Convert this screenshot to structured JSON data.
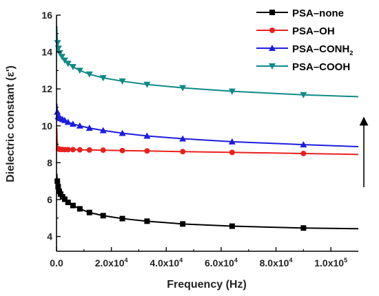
{
  "chart_data": {
    "type": "line",
    "xlabel": "Frequency (Hz)",
    "ylabel": "Dielectric constant (ε')",
    "xlim": [
      0,
      110000
    ],
    "ylim": [
      3.2,
      16
    ],
    "xticks": [
      {
        "value": 0,
        "label": "0.0"
      },
      {
        "value": 20000,
        "label": "2.0x10",
        "exp": "4"
      },
      {
        "value": 40000,
        "label": "4.0x10",
        "exp": "4"
      },
      {
        "value": 60000,
        "label": "6.0x10",
        "exp": "4"
      },
      {
        "value": 80000,
        "label": "8.0x10",
        "exp": "4"
      },
      {
        "value": 100000,
        "label": "1.0x10",
        "exp": "5"
      }
    ],
    "yticks": [
      {
        "value": 4,
        "label": "4"
      },
      {
        "value": 6,
        "label": "6"
      },
      {
        "value": 8,
        "label": "8"
      },
      {
        "value": 10,
        "label": "10"
      },
      {
        "value": 12,
        "label": "12"
      },
      {
        "value": 14,
        "label": "14"
      },
      {
        "value": 16,
        "label": "16"
      }
    ],
    "legend_position": "top-right",
    "annotation": "upward arrow",
    "series": [
      {
        "name": "PSA–none",
        "color": "#000000",
        "marker": "square",
        "line": [
          [
            100,
            7.4
          ],
          [
            300,
            7.0
          ],
          [
            600,
            6.7
          ],
          [
            1000,
            6.45
          ],
          [
            1500,
            6.3
          ],
          [
            2200,
            6.15
          ],
          [
            3000,
            6.02
          ],
          [
            4200,
            5.85
          ],
          [
            6000,
            5.68
          ],
          [
            8500,
            5.5
          ],
          [
            12000,
            5.3
          ],
          [
            17000,
            5.13
          ],
          [
            24000,
            4.97
          ],
          [
            33000,
            4.83
          ],
          [
            46000,
            4.68
          ],
          [
            64000,
            4.56
          ],
          [
            90000,
            4.46
          ],
          [
            110000,
            4.42
          ]
        ],
        "markers": [
          [
            300,
            7.0
          ],
          [
            600,
            6.7
          ],
          [
            1000,
            6.45
          ],
          [
            1500,
            6.3
          ],
          [
            2200,
            6.15
          ],
          [
            3000,
            6.02
          ],
          [
            4200,
            5.85
          ],
          [
            6000,
            5.68
          ],
          [
            8500,
            5.5
          ],
          [
            12000,
            5.3
          ],
          [
            17000,
            5.13
          ],
          [
            24000,
            4.97
          ],
          [
            33000,
            4.83
          ],
          [
            46000,
            4.68
          ],
          [
            64000,
            4.56
          ],
          [
            90000,
            4.46
          ]
        ]
      },
      {
        "name": "PSA–OH",
        "color": "#e8201c",
        "marker": "circle",
        "line": [
          [
            100,
            9.9
          ],
          [
            200,
            9.3
          ],
          [
            400,
            8.85
          ],
          [
            700,
            8.75
          ],
          [
            1200,
            8.72
          ],
          [
            2000,
            8.72
          ],
          [
            3000,
            8.71
          ],
          [
            4200,
            8.71
          ],
          [
            6000,
            8.71
          ],
          [
            8500,
            8.7
          ],
          [
            12000,
            8.69
          ],
          [
            17000,
            8.68
          ],
          [
            24000,
            8.66
          ],
          [
            33000,
            8.64
          ],
          [
            46000,
            8.6
          ],
          [
            64000,
            8.56
          ],
          [
            90000,
            8.5
          ],
          [
            110000,
            8.45
          ]
        ],
        "markers": [
          [
            700,
            8.75
          ],
          [
            1200,
            8.72
          ],
          [
            2000,
            8.72
          ],
          [
            3000,
            8.71
          ],
          [
            4200,
            8.71
          ],
          [
            6000,
            8.71
          ],
          [
            8500,
            8.7
          ],
          [
            12000,
            8.69
          ],
          [
            17000,
            8.68
          ],
          [
            24000,
            8.66
          ],
          [
            33000,
            8.64
          ],
          [
            46000,
            8.6
          ],
          [
            64000,
            8.56
          ],
          [
            90000,
            8.5
          ]
        ]
      },
      {
        "name": "PSA–CONH",
        "name_sub": "2",
        "color": "#1c1ce0",
        "marker": "triangle-up",
        "line": [
          [
            100,
            11.2
          ],
          [
            300,
            10.75
          ],
          [
            600,
            10.5
          ],
          [
            1000,
            10.45
          ],
          [
            1500,
            10.4
          ],
          [
            2200,
            10.35
          ],
          [
            3000,
            10.3
          ],
          [
            4200,
            10.2
          ],
          [
            6000,
            10.1
          ],
          [
            8500,
            10.0
          ],
          [
            12000,
            9.88
          ],
          [
            17000,
            9.75
          ],
          [
            24000,
            9.6
          ],
          [
            33000,
            9.45
          ],
          [
            46000,
            9.3
          ],
          [
            64000,
            9.14
          ],
          [
            90000,
            8.98
          ],
          [
            110000,
            8.87
          ]
        ],
        "markers": [
          [
            300,
            10.75
          ],
          [
            600,
            10.5
          ],
          [
            1000,
            10.45
          ],
          [
            1500,
            10.4
          ],
          [
            2200,
            10.35
          ],
          [
            3000,
            10.3
          ],
          [
            4200,
            10.2
          ],
          [
            6000,
            10.1
          ],
          [
            8500,
            10.0
          ],
          [
            12000,
            9.88
          ],
          [
            17000,
            9.75
          ],
          [
            24000,
            9.6
          ],
          [
            33000,
            9.45
          ],
          [
            46000,
            9.3
          ],
          [
            64000,
            9.14
          ],
          [
            90000,
            8.98
          ]
        ]
      },
      {
        "name": "PSA–COOH",
        "color": "#0e8a87",
        "marker": "triangle-down",
        "line": [
          [
            100,
            15.4
          ],
          [
            200,
            14.9
          ],
          [
            400,
            14.5
          ],
          [
            700,
            14.2
          ],
          [
            1200,
            13.95
          ],
          [
            2000,
            13.75
          ],
          [
            3000,
            13.55
          ],
          [
            4200,
            13.38
          ],
          [
            6000,
            13.2
          ],
          [
            8500,
            13.0
          ],
          [
            12000,
            12.8
          ],
          [
            17000,
            12.6
          ],
          [
            24000,
            12.42
          ],
          [
            33000,
            12.24
          ],
          [
            46000,
            12.06
          ],
          [
            64000,
            11.87
          ],
          [
            90000,
            11.68
          ],
          [
            110000,
            11.58
          ]
        ],
        "markers": [
          [
            400,
            14.5
          ],
          [
            700,
            14.2
          ],
          [
            1200,
            13.95
          ],
          [
            2000,
            13.75
          ],
          [
            3000,
            13.55
          ],
          [
            4200,
            13.38
          ],
          [
            6000,
            13.2
          ],
          [
            8500,
            13.0
          ],
          [
            12000,
            12.8
          ],
          [
            17000,
            12.6
          ],
          [
            24000,
            12.42
          ],
          [
            33000,
            12.24
          ],
          [
            46000,
            12.06
          ],
          [
            64000,
            11.87
          ],
          [
            90000,
            11.68
          ]
        ]
      }
    ]
  }
}
